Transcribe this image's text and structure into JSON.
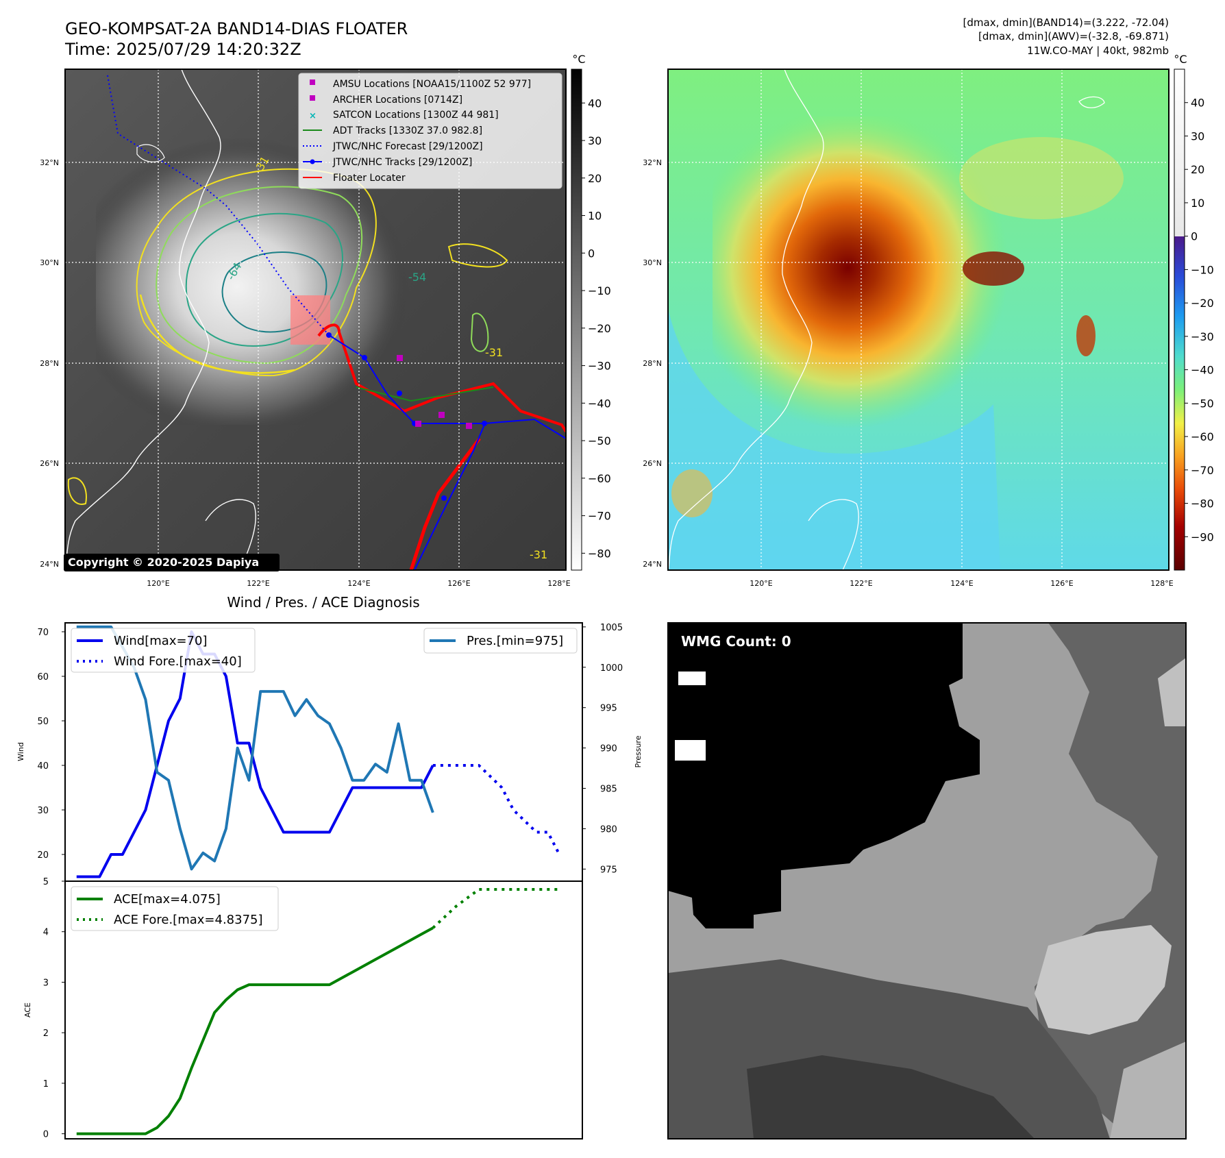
{
  "header": {
    "title_line1": "GEO-KOMPSAT-2A BAND14-DIAS FLOATER",
    "title_line2": "Time: 2025/07/29 14:20:32Z",
    "info_line1": "[dmax, dmin](BAND14)=(3.222, -72.04)",
    "info_line2": "[dmax, dmin](AWV)=(-32.8, -69.871)",
    "info_line3": "11W.CO-MAY | 40kt, 982mb"
  },
  "map": {
    "lon_ticks": [
      "120°E",
      "122°E",
      "124°E",
      "126°E",
      "128°E"
    ],
    "lat_ticks": [
      "24°N",
      "26°N",
      "28°N",
      "30°N",
      "32°N"
    ],
    "copyright": "Copyright © 2020-2025 Dapiya",
    "contour_labels": [
      "-64",
      "-54",
      "-31",
      "-31",
      "-31"
    ],
    "legend": [
      {
        "label": "AMSU Locations [NOAA15/1100Z 52 977]",
        "color": "#c000c0",
        "marker": "square"
      },
      {
        "label": "ARCHER Locations [0714Z]",
        "color": "#c000c0",
        "marker": "square"
      },
      {
        "label": "SATCON Locations [1300Z 44 981]",
        "color": "#00b5b5",
        "marker": "x"
      },
      {
        "label": "ADT Tracks [1330Z 37.0 982.8]",
        "color": "#1a8a1a",
        "marker": "line"
      },
      {
        "label": "JTWC/NHC Forecast [29/1200Z]",
        "color": "#0000ff",
        "marker": "dotted"
      },
      {
        "label": "JTWC/NHC Tracks [29/1200Z]",
        "color": "#0000ff",
        "marker": "line-dot"
      },
      {
        "label": "Floater Locater",
        "color": "#ff0000",
        "marker": "line"
      }
    ]
  },
  "colorbar_left": {
    "unit": "°C",
    "ticks": [
      "40",
      "30",
      "20",
      "10",
      "0",
      "−10",
      "−20",
      "−30",
      "−40",
      "−50",
      "−60",
      "−70",
      "−80"
    ]
  },
  "colorbar_right": {
    "unit": "°C",
    "ticks": [
      "40",
      "30",
      "20",
      "10",
      "0",
      "−10",
      "−20",
      "−30",
      "−40",
      "−50",
      "−60",
      "−70",
      "−80",
      "−90"
    ]
  },
  "diag_title": "Wind / Pres. / ACE Diagnosis",
  "wmg_label": "WMG Count: 0",
  "chart_data": [
    {
      "type": "line",
      "title": "Wind / Pres. / ACE Diagnosis",
      "ylabel": "Wind",
      "ylabel_right": "Pressure",
      "ylim": [
        14,
        72
      ],
      "ylim_right": [
        973.5,
        1005.5
      ],
      "xlim": [
        -0.5,
        22
      ],
      "yticks": [
        "20",
        "30",
        "40",
        "50",
        "60",
        "70"
      ],
      "yticks_right": [
        "975",
        "980",
        "985",
        "990",
        "995",
        "1000",
        "1005"
      ],
      "series": [
        {
          "name": "Wind[max=70]",
          "color": "#0000ee",
          "style": "solid",
          "axis": "left",
          "x": [
            0,
            1,
            1.5,
            2,
            3,
            3.5,
            4,
            4.5,
            5,
            5.5,
            6,
            6.5,
            7,
            7.5,
            8,
            8.5,
            9,
            10,
            11,
            12,
            13,
            14,
            15,
            15.5
          ],
          "values": [
            15,
            15,
            20,
            20,
            30,
            40,
            50,
            55,
            70,
            65,
            65,
            60,
            45,
            45,
            35,
            30,
            25,
            25,
            25,
            35,
            35,
            35,
            35,
            40
          ]
        },
        {
          "name": "Wind Fore.[max=40]",
          "color": "#0000ee",
          "style": "dotted",
          "axis": "left",
          "x": [
            15.5,
            16.5,
            17.5,
            18.5,
            19,
            20,
            20.5,
            21
          ],
          "values": [
            40,
            40,
            40,
            35,
            30,
            25,
            25,
            20
          ]
        },
        {
          "name": "Pres.[min=975]",
          "color": "#1f77b4",
          "style": "solid",
          "axis": "right",
          "x": [
            0,
            1.5,
            2.5,
            3,
            3.5,
            4,
            4.5,
            5,
            5.5,
            6,
            6.5,
            7,
            7.5,
            8,
            8.5,
            9,
            9.5,
            10,
            10.5,
            11,
            11.5,
            12,
            12.5,
            13,
            13.5,
            14,
            14.5,
            15,
            15.5
          ],
          "values": [
            1005,
            1005,
            1000,
            996,
            987,
            986,
            980,
            975,
            977,
            976,
            980,
            990,
            986,
            997,
            997,
            997,
            994,
            996,
            994,
            993,
            990,
            986,
            986,
            988,
            987,
            993,
            986,
            986,
            982
          ]
        }
      ]
    },
    {
      "type": "line",
      "ylabel": "ACE",
      "ylim": [
        -0.1,
        5
      ],
      "xlim": [
        -0.5,
        22
      ],
      "yticks": [
        "0",
        "1",
        "2",
        "3",
        "4",
        "5"
      ],
      "series": [
        {
          "name": "ACE[max=4.075]",
          "color": "#008000",
          "style": "solid",
          "x": [
            0,
            1,
            2,
            3,
            3.5,
            4,
            4.5,
            5,
            5.5,
            6,
            6.5,
            7,
            7.5,
            8,
            9,
            10,
            11,
            12,
            13,
            14,
            15,
            15.5
          ],
          "values": [
            0,
            0,
            0,
            0,
            0.12,
            0.35,
            0.7,
            1.3,
            1.85,
            2.4,
            2.65,
            2.85,
            2.95,
            2.95,
            2.95,
            2.95,
            2.95,
            3.2,
            3.45,
            3.7,
            3.95,
            4.075
          ]
        },
        {
          "name": "ACE Fore.[max=4.8375]",
          "color": "#008000",
          "style": "dotted",
          "x": [
            15.5,
            16.5,
            17.5,
            18.5,
            19.5,
            20.5,
            21
          ],
          "values": [
            4.075,
            4.5,
            4.8375,
            4.8375,
            4.8375,
            4.8375,
            4.8375
          ]
        }
      ]
    }
  ]
}
